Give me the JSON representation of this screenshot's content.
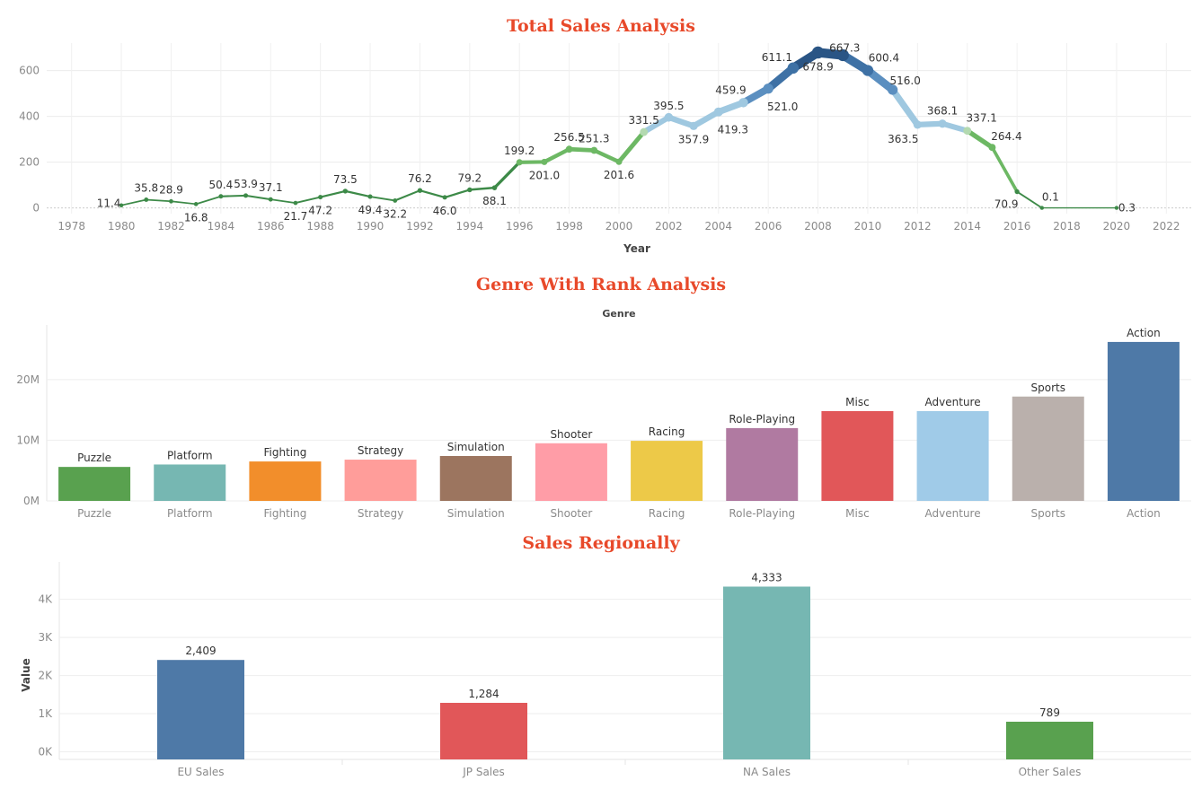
{
  "chart_data": [
    {
      "type": "line",
      "title": "Total Sales Analysis",
      "xlabel": "Year",
      "ylabel": "",
      "xlim": [
        1977,
        2023
      ],
      "ylim": [
        -25,
        720
      ],
      "x_ticks": [
        1978,
        1980,
        1982,
        1984,
        1986,
        1988,
        1990,
        1992,
        1994,
        1996,
        1998,
        2000,
        2002,
        2004,
        2006,
        2008,
        2010,
        2012,
        2014,
        2016,
        2018,
        2020,
        2022
      ],
      "y_ticks": [
        0,
        200,
        400,
        600
      ],
      "x": [
        1980,
        1981,
        1982,
        1983,
        1984,
        1985,
        1986,
        1987,
        1988,
        1989,
        1990,
        1991,
        1992,
        1993,
        1994,
        1995,
        1996,
        1997,
        1998,
        1999,
        2000,
        2001,
        2002,
        2003,
        2004,
        2005,
        2006,
        2007,
        2008,
        2009,
        2010,
        2011,
        2012,
        2013,
        2014,
        2015,
        2016,
        2017,
        2020
      ],
      "y": [
        11.4,
        35.8,
        28.9,
        16.8,
        50.4,
        53.9,
        37.1,
        21.7,
        47.2,
        73.5,
        49.4,
        32.2,
        76.2,
        46.0,
        79.2,
        88.1,
        199.2,
        201.0,
        256.5,
        251.3,
        201.6,
        331.5,
        395.5,
        357.9,
        419.3,
        459.9,
        521.0,
        611.1,
        678.9,
        667.3,
        600.4,
        516.0,
        363.5,
        368.1,
        337.1,
        264.4,
        70.9,
        0.1,
        0.3
      ],
      "point_labels": [
        "11.4",
        "35.8",
        "28.9",
        "16.8",
        "50.4",
        "53.9",
        "37.1",
        "21.7",
        "47.2",
        "73.5",
        "49.4",
        "32.2",
        "76.2",
        "46.0",
        "79.2",
        "88.1",
        "199.2",
        "201.0",
        "256.5",
        "251.3",
        "201.6",
        "331.5",
        "395.5",
        "357.9",
        "419.3",
        "459.9",
        "521.0",
        "611.1",
        "678.9",
        "667.3",
        "600.4",
        "516.0",
        "363.5",
        "368.1",
        "337.1",
        "264.4",
        "70.9",
        "0.1",
        "0.3"
      ],
      "grid": true
    },
    {
      "type": "bar",
      "title": "Genre With Rank Analysis",
      "header": "Genre",
      "categories": [
        "Puzzle",
        "Platform",
        "Fighting",
        "Strategy",
        "Simulation",
        "Shooter",
        "Racing",
        "Role-Playing",
        "Misc",
        "Adventure",
        "Sports",
        "Action"
      ],
      "values": [
        5.6,
        6.0,
        6.5,
        6.8,
        7.4,
        9.5,
        9.9,
        12.0,
        14.8,
        14.8,
        17.2,
        26.2
      ],
      "value_unit": "M",
      "colors": [
        "#59a14f",
        "#76b7b2",
        "#f28e2b",
        "#ff9d9a",
        "#9c755f",
        "#ff9da7",
        "#edc948",
        "#b07aa1",
        "#e15759",
        "#a0cbe8",
        "#bab0ac",
        "#4e79a7"
      ],
      "y_ticks": [
        0,
        10,
        20
      ],
      "y_tick_labels": [
        "0M",
        "10M",
        "20M"
      ],
      "ylim": [
        0,
        29
      ],
      "grid": true
    },
    {
      "type": "bar",
      "title": "Sales Regionally",
      "ylabel": "Value",
      "categories": [
        "EU Sales",
        "JP Sales",
        "NA Sales",
        "Other Sales"
      ],
      "values": [
        2409,
        1284,
        4333,
        789
      ],
      "value_labels": [
        "2,409",
        "1,284",
        "4,333",
        "789"
      ],
      "colors": [
        "#4e79a7",
        "#e15759",
        "#76b7b2",
        "#59a14f"
      ],
      "y_ticks": [
        0,
        1000,
        2000,
        3000,
        4000
      ],
      "y_tick_labels": [
        "0K",
        "1K",
        "2K",
        "3K",
        "4K"
      ],
      "ylim": [
        -200,
        4980
      ],
      "grid": true
    }
  ]
}
